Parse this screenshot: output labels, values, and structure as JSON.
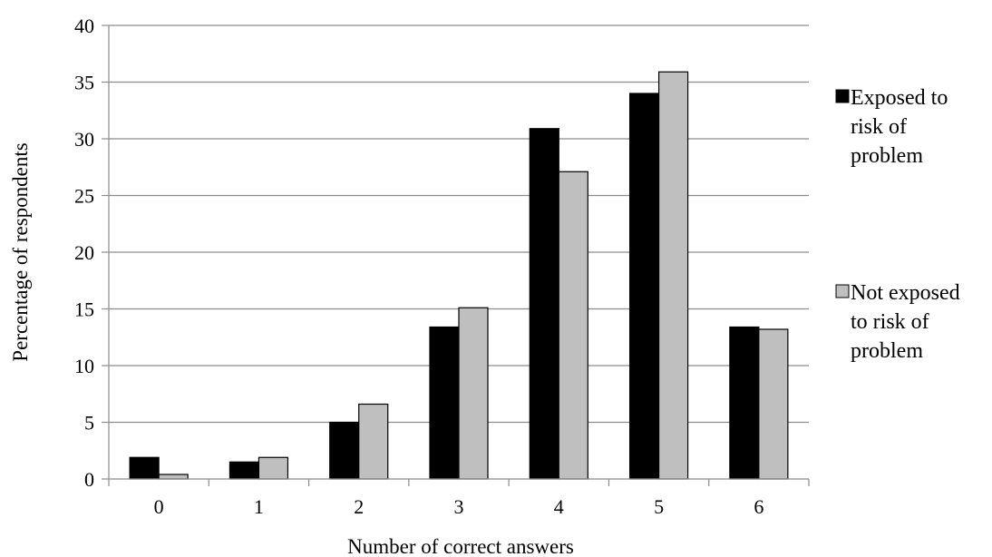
{
  "chart_data": {
    "type": "bar",
    "title": "",
    "xlabel": "Number of correct answers",
    "ylabel": "Percentage of respondents",
    "categories": [
      "0",
      "1",
      "2",
      "3",
      "4",
      "5",
      "6"
    ],
    "ylim": [
      0,
      40
    ],
    "yticks": [
      0,
      5,
      10,
      15,
      20,
      25,
      30,
      35,
      40
    ],
    "grid": "horizontal",
    "legend": "right",
    "series": [
      {
        "name_lines": [
          "Exposed to",
          "risk of",
          "problem"
        ],
        "color": "#000000",
        "values": [
          1.9,
          1.5,
          5.0,
          13.4,
          30.9,
          34.0,
          13.4
        ]
      },
      {
        "name_lines": [
          "Not exposed",
          "to risk of",
          "problem"
        ],
        "color": "#bfbfbf",
        "values": [
          0.4,
          1.9,
          6.6,
          15.1,
          27.1,
          35.9,
          13.2
        ]
      }
    ]
  }
}
